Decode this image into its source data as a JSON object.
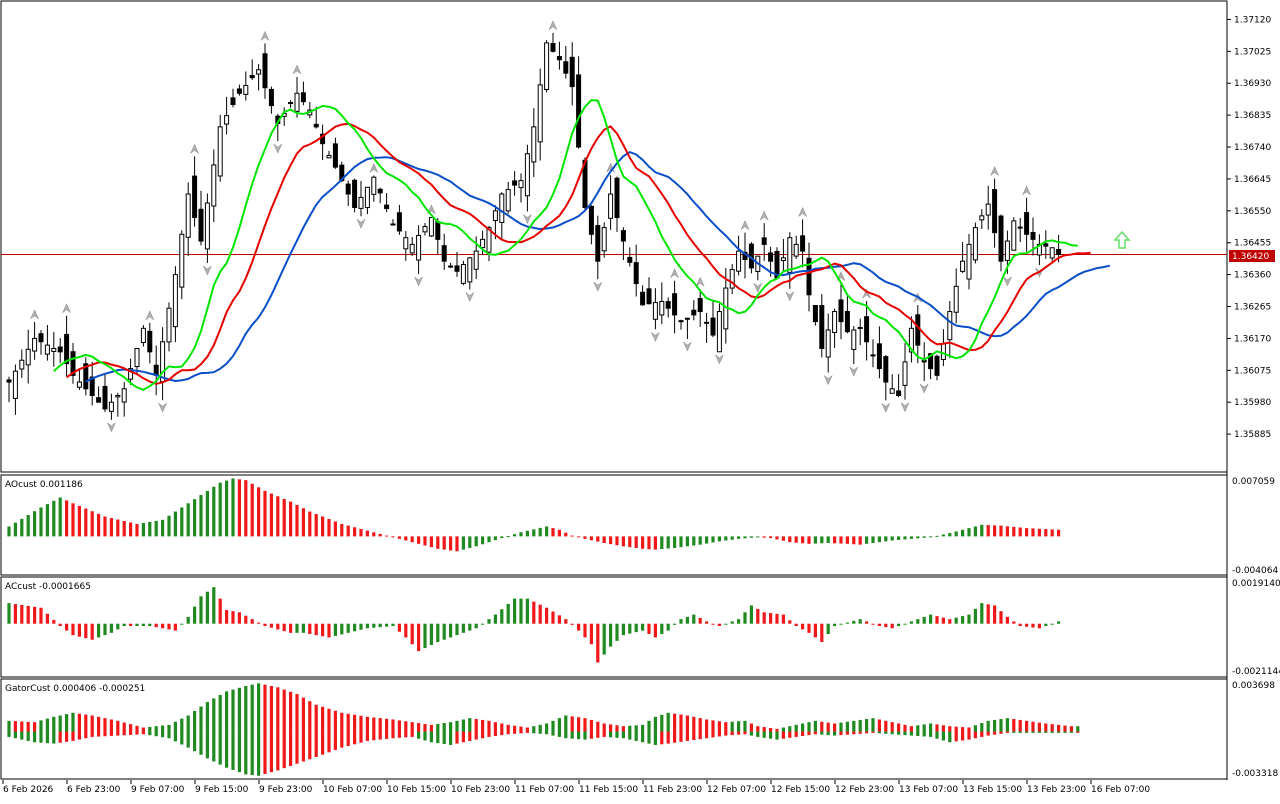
{
  "colors": {
    "background": "#ffffff",
    "grid_border": "#000000",
    "bull_candle": "#ffffff",
    "bear_candle": "#000000",
    "alligator_lips": "#00e600",
    "alligator_teeth": "#e60000",
    "alligator_jaw": "#0a4fc8",
    "histogram_up": "#1f8a1f",
    "histogram_down": "#f01818",
    "price_line": "#c00000",
    "price_label_bg": "#c00000",
    "fractal_marker": "#b0b0b0",
    "buy_arrow": "#66dd66"
  },
  "price_panel": {
    "current_price": "1.36420",
    "current_price_value": 1.3642,
    "ymin": 1.3579,
    "ymax": 1.3716,
    "ticks": [
      "1.37120",
      "1.37025",
      "1.36930",
      "1.36835",
      "1.36740",
      "1.36645",
      "1.36550",
      "1.36455",
      "1.36360",
      "1.36265",
      "1.36170",
      "1.36075",
      "1.35980",
      "1.35885"
    ],
    "buy_arrow_icon": "up-arrow-icon"
  },
  "x_axis": {
    "labels": [
      "6 Feb 2026",
      "6 Feb 23:00",
      "9 Feb 07:00",
      "9 Feb 15:00",
      "9 Feb 23:00",
      "10 Feb 07:00",
      "10 Feb 15:00",
      "10 Feb 23:00",
      "11 Feb 07:00",
      "11 Feb 15:00",
      "11 Feb 23:00",
      "12 Feb 07:00",
      "12 Feb 15:00",
      "12 Feb 23:00",
      "13 Feb 07:00",
      "13 Feb 15:00",
      "13 Feb 23:00",
      "16 Feb 07:00"
    ]
  },
  "indicators": {
    "ao": {
      "label": "AOcust 0.001186",
      "max_label": "0.007059",
      "min_label": "-0.004064",
      "max": 0.007059,
      "min": -0.004064
    },
    "ac": {
      "label": "ACcust -0.0001665",
      "max_label": "0.0019140",
      "min_label": "-0.0021144",
      "max": 0.001914,
      "min": -0.0021144
    },
    "gator": {
      "label": "GatorCust 0.000406 -0.000251",
      "max_label": "0.003698",
      "min_label": "-0.003318",
      "max": 0.003698,
      "min": -0.003318
    }
  },
  "chart_data": {
    "type": "candlestick",
    "symbol_timeframe_note": "",
    "anchor_closes": [
      [
        0,
        1.3604
      ],
      [
        4,
        1.3617
      ],
      [
        8,
        1.3613
      ],
      [
        10,
        1.3606
      ],
      [
        12,
        1.3602
      ],
      [
        15,
        1.3596
      ],
      [
        18,
        1.3602
      ],
      [
        21,
        1.362
      ],
      [
        23,
        1.3606
      ],
      [
        26,
        1.3636
      ],
      [
        28,
        1.366
      ],
      [
        30,
        1.3646
      ],
      [
        33,
        1.368
      ],
      [
        36,
        1.369
      ],
      [
        39,
        1.3697
      ],
      [
        42,
        1.3681
      ],
      [
        45,
        1.369
      ],
      [
        47,
        1.3685
      ],
      [
        49,
        1.3675
      ],
      [
        51,
        1.3668
      ],
      [
        54,
        1.3656
      ],
      [
        57,
        1.3665
      ],
      [
        60,
        1.3651
      ],
      [
        63,
        1.3645
      ],
      [
        66,
        1.3653
      ],
      [
        68,
        1.364
      ],
      [
        70,
        1.3637
      ],
      [
        73,
        1.3643
      ],
      [
        75,
        1.365
      ],
      [
        77,
        1.366
      ],
      [
        80,
        1.3664
      ],
      [
        82,
        1.368
      ],
      [
        84,
        1.3705
      ],
      [
        86,
        1.37
      ],
      [
        88,
        1.3692
      ],
      [
        90,
        1.3656
      ],
      [
        92,
        1.364
      ],
      [
        94,
        1.366
      ],
      [
        96,
        1.3646
      ],
      [
        99,
        1.3627
      ],
      [
        102,
        1.3628
      ],
      [
        105,
        1.3622
      ],
      [
        108,
        1.3625
      ],
      [
        110,
        1.3618
      ],
      [
        112,
        1.3632
      ],
      [
        114,
        1.3643
      ],
      [
        116,
        1.3638
      ],
      [
        118,
        1.3645
      ],
      [
        120,
        1.3635
      ],
      [
        122,
        1.3647
      ],
      [
        124,
        1.3643
      ],
      [
        125,
        1.363
      ],
      [
        127,
        1.3614
      ],
      [
        129,
        1.3625
      ],
      [
        131,
        1.3619
      ],
      [
        133,
        1.362
      ],
      [
        135,
        1.3612
      ],
      [
        137,
        1.3604
      ],
      [
        139,
        1.36
      ],
      [
        141,
        1.362
      ],
      [
        143,
        1.361
      ],
      [
        145,
        1.3606
      ],
      [
        147,
        1.3625
      ],
      [
        149,
        1.364
      ],
      [
        151,
        1.365
      ],
      [
        153,
        1.3657
      ],
      [
        155,
        1.364
      ],
      [
        157,
        1.3652
      ],
      [
        159,
        1.3648
      ],
      [
        161,
        1.3645
      ],
      [
        163,
        1.3644
      ],
      [
        164,
        1.3642
      ]
    ],
    "ao_values": [
      [
        0,
        0.0012
      ],
      [
        5,
        0.0035
      ],
      [
        8,
        0.0047
      ],
      [
        10,
        0.004
      ],
      [
        15,
        0.0024
      ],
      [
        20,
        0.0015
      ],
      [
        24,
        0.002
      ],
      [
        26,
        0.003
      ],
      [
        30,
        0.005
      ],
      [
        33,
        0.0065
      ],
      [
        35,
        0.007
      ],
      [
        37,
        0.0068
      ],
      [
        40,
        0.0055
      ],
      [
        44,
        0.0042
      ],
      [
        47,
        0.003
      ],
      [
        52,
        0.0015
      ],
      [
        57,
        0.0005
      ],
      [
        62,
        -0.0005
      ],
      [
        67,
        -0.0015
      ],
      [
        70,
        -0.0018
      ],
      [
        73,
        -0.0012
      ],
      [
        77,
        -0.0002
      ],
      [
        80,
        0.0005
      ],
      [
        84,
        0.0012
      ],
      [
        86,
        0.0008
      ],
      [
        88,
        0.0001
      ],
      [
        90,
        -0.0003
      ],
      [
        93,
        -0.0008
      ],
      [
        96,
        -0.0012
      ],
      [
        99,
        -0.0015
      ],
      [
        101,
        -0.0016
      ],
      [
        104,
        -0.0014
      ],
      [
        108,
        -0.001
      ],
      [
        111,
        -0.0006
      ],
      [
        114,
        -0.0003
      ],
      [
        117,
        -0.0001
      ],
      [
        119,
        -0.0002
      ],
      [
        122,
        -0.0007
      ],
      [
        125,
        -0.0009
      ],
      [
        128,
        -0.0008
      ],
      [
        131,
        -0.0009
      ],
      [
        133,
        -0.001
      ],
      [
        135,
        -0.0008
      ],
      [
        138,
        -0.0005
      ],
      [
        141,
        -0.0003
      ],
      [
        144,
        -0.0001
      ],
      [
        147,
        0.0004
      ],
      [
        150,
        0.001
      ],
      [
        152,
        0.0014
      ],
      [
        155,
        0.0013
      ],
      [
        159,
        0.001
      ],
      [
        164,
        0.0008
      ]
    ],
    "ac_values": [
      [
        0,
        0.0009
      ],
      [
        5,
        0.0007
      ],
      [
        8,
        -0.0001
      ],
      [
        10,
        -0.0005
      ],
      [
        13,
        -0.0007
      ],
      [
        16,
        -0.0004
      ],
      [
        18,
        -0.0001
      ],
      [
        22,
        -0.0001
      ],
      [
        26,
        -0.0003
      ],
      [
        28,
        0.0003
      ],
      [
        30,
        0.0012
      ],
      [
        32,
        0.0016
      ],
      [
        34,
        0.0006
      ],
      [
        36,
        0.0005
      ],
      [
        38,
        0.0002
      ],
      [
        40,
        -0.0001
      ],
      [
        44,
        -0.0004
      ],
      [
        46,
        -0.0004
      ],
      [
        50,
        -0.0006
      ],
      [
        53,
        -0.0004
      ],
      [
        56,
        -0.0002
      ],
      [
        60,
        -0.0001
      ],
      [
        62,
        -0.0006
      ],
      [
        64,
        -0.0012
      ],
      [
        67,
        -0.0008
      ],
      [
        70,
        -0.0005
      ],
      [
        73,
        -0.0002
      ],
      [
        76,
        0.0004
      ],
      [
        79,
        0.0011
      ],
      [
        81,
        0.0011
      ],
      [
        84,
        0.0007
      ],
      [
        87,
        0.0002
      ],
      [
        89,
        -0.0003
      ],
      [
        91,
        -0.0009
      ],
      [
        92,
        -0.0017
      ],
      [
        94,
        -0.001
      ],
      [
        96,
        -0.0005
      ],
      [
        99,
        -0.0003
      ],
      [
        101,
        -0.0006
      ],
      [
        103,
        -0.0003
      ],
      [
        105,
        0.0002
      ],
      [
        107,
        0.0004
      ],
      [
        109,
        0.0001
      ],
      [
        111,
        -0.0001
      ],
      [
        114,
        0.0002
      ],
      [
        116,
        0.0008
      ],
      [
        118,
        0.0005
      ],
      [
        121,
        0.0004
      ],
      [
        123,
        -0.0001
      ],
      [
        125,
        -0.0004
      ],
      [
        127,
        -0.0008
      ],
      [
        129,
        -0.0001
      ],
      [
        133,
        0.0002
      ],
      [
        136,
        -0.0001
      ],
      [
        138,
        -0.0002
      ],
      [
        141,
        0.0001
      ],
      [
        144,
        0.0004
      ],
      [
        147,
        0.0002
      ],
      [
        150,
        0.0004
      ],
      [
        152,
        0.0009
      ],
      [
        154,
        0.0008
      ],
      [
        156,
        0.0003
      ],
      [
        158,
        -0.0001
      ],
      [
        161,
        -0.0002
      ],
      [
        164,
        0.0001
      ]
    ],
    "gator_values": [
      [
        0,
        0.0008
      ],
      [
        4,
        0.0007
      ],
      [
        7,
        0.0011
      ],
      [
        10,
        0.0014
      ],
      [
        13,
        0.0012
      ],
      [
        17,
        0.0008
      ],
      [
        21,
        0.0003
      ],
      [
        25,
        0.0005
      ],
      [
        28,
        0.0012
      ],
      [
        31,
        0.0022
      ],
      [
        34,
        0.003
      ],
      [
        37,
        0.0034
      ],
      [
        39,
        0.0036
      ],
      [
        42,
        0.0033
      ],
      [
        45,
        0.0028
      ],
      [
        48,
        0.002
      ],
      [
        52,
        0.0014
      ],
      [
        56,
        0.0011
      ],
      [
        60,
        0.0009
      ],
      [
        63,
        0.0007
      ],
      [
        66,
        0.0005
      ],
      [
        69,
        0.0007
      ],
      [
        72,
        0.001
      ],
      [
        75,
        0.0008
      ],
      [
        78,
        0.0005
      ],
      [
        81,
        0.0003
      ],
      [
        84,
        0.0006
      ],
      [
        87,
        0.0012
      ],
      [
        90,
        0.001
      ],
      [
        93,
        0.0006
      ],
      [
        96,
        0.0004
      ],
      [
        99,
        0.0005
      ],
      [
        101,
        0.0011
      ],
      [
        103,
        0.0014
      ],
      [
        106,
        0.0012
      ],
      [
        109,
        0.0009
      ],
      [
        112,
        0.0007
      ],
      [
        115,
        0.0008
      ],
      [
        117,
        0.0004
      ],
      [
        120,
        0.0002
      ],
      [
        123,
        0.0005
      ],
      [
        126,
        0.0008
      ],
      [
        129,
        0.0006
      ],
      [
        132,
        0.0008
      ],
      [
        135,
        0.001
      ],
      [
        138,
        0.0007
      ],
      [
        141,
        0.0004
      ],
      [
        144,
        0.0006
      ],
      [
        147,
        0.0004
      ],
      [
        150,
        0.0003
      ],
      [
        153,
        0.0008
      ],
      [
        156,
        0.001
      ],
      [
        159,
        0.0008
      ],
      [
        162,
        0.0006
      ],
      [
        166,
        0.0004
      ]
    ],
    "gator_lower_values": [
      [
        0,
        -0.0004
      ],
      [
        4,
        -0.0008
      ],
      [
        7,
        -0.0009
      ],
      [
        10,
        -0.0007
      ],
      [
        13,
        -0.0004
      ],
      [
        17,
        -0.0003
      ],
      [
        21,
        -0.0002
      ],
      [
        25,
        -0.0005
      ],
      [
        28,
        -0.0012
      ],
      [
        31,
        -0.002
      ],
      [
        34,
        -0.0027
      ],
      [
        37,
        -0.0032
      ],
      [
        39,
        -0.0033
      ],
      [
        42,
        -0.0029
      ],
      [
        45,
        -0.0024
      ],
      [
        48,
        -0.0019
      ],
      [
        52,
        -0.0012
      ],
      [
        56,
        -0.0007
      ],
      [
        60,
        -0.0005
      ],
      [
        63,
        -0.0004
      ],
      [
        66,
        -0.0008
      ],
      [
        69,
        -0.001
      ],
      [
        72,
        -0.0007
      ],
      [
        75,
        -0.0004
      ],
      [
        78,
        -0.0002
      ],
      [
        81,
        -0.0001
      ],
      [
        84,
        -0.0002
      ],
      [
        87,
        -0.0005
      ],
      [
        90,
        -0.0006
      ],
      [
        93,
        -0.0004
      ],
      [
        96,
        -0.0005
      ],
      [
        99,
        -0.0008
      ],
      [
        101,
        -0.001
      ],
      [
        103,
        -0.0009
      ],
      [
        106,
        -0.0007
      ],
      [
        109,
        -0.0005
      ],
      [
        112,
        -0.0003
      ],
      [
        115,
        -0.0002
      ],
      [
        117,
        -0.0004
      ],
      [
        120,
        -0.0006
      ],
      [
        123,
        -0.0004
      ],
      [
        126,
        -0.0002
      ],
      [
        129,
        -0.0003
      ],
      [
        132,
        -0.0002
      ],
      [
        135,
        -0.0001
      ],
      [
        138,
        -0.0002
      ],
      [
        141,
        -0.0003
      ],
      [
        144,
        -0.0004
      ],
      [
        147,
        -0.0008
      ],
      [
        150,
        -0.0006
      ],
      [
        153,
        -0.0003
      ],
      [
        156,
        -0.0001
      ],
      [
        159,
        -0.0001
      ],
      [
        162,
        -0.0001
      ],
      [
        166,
        -0.0001
      ]
    ]
  }
}
